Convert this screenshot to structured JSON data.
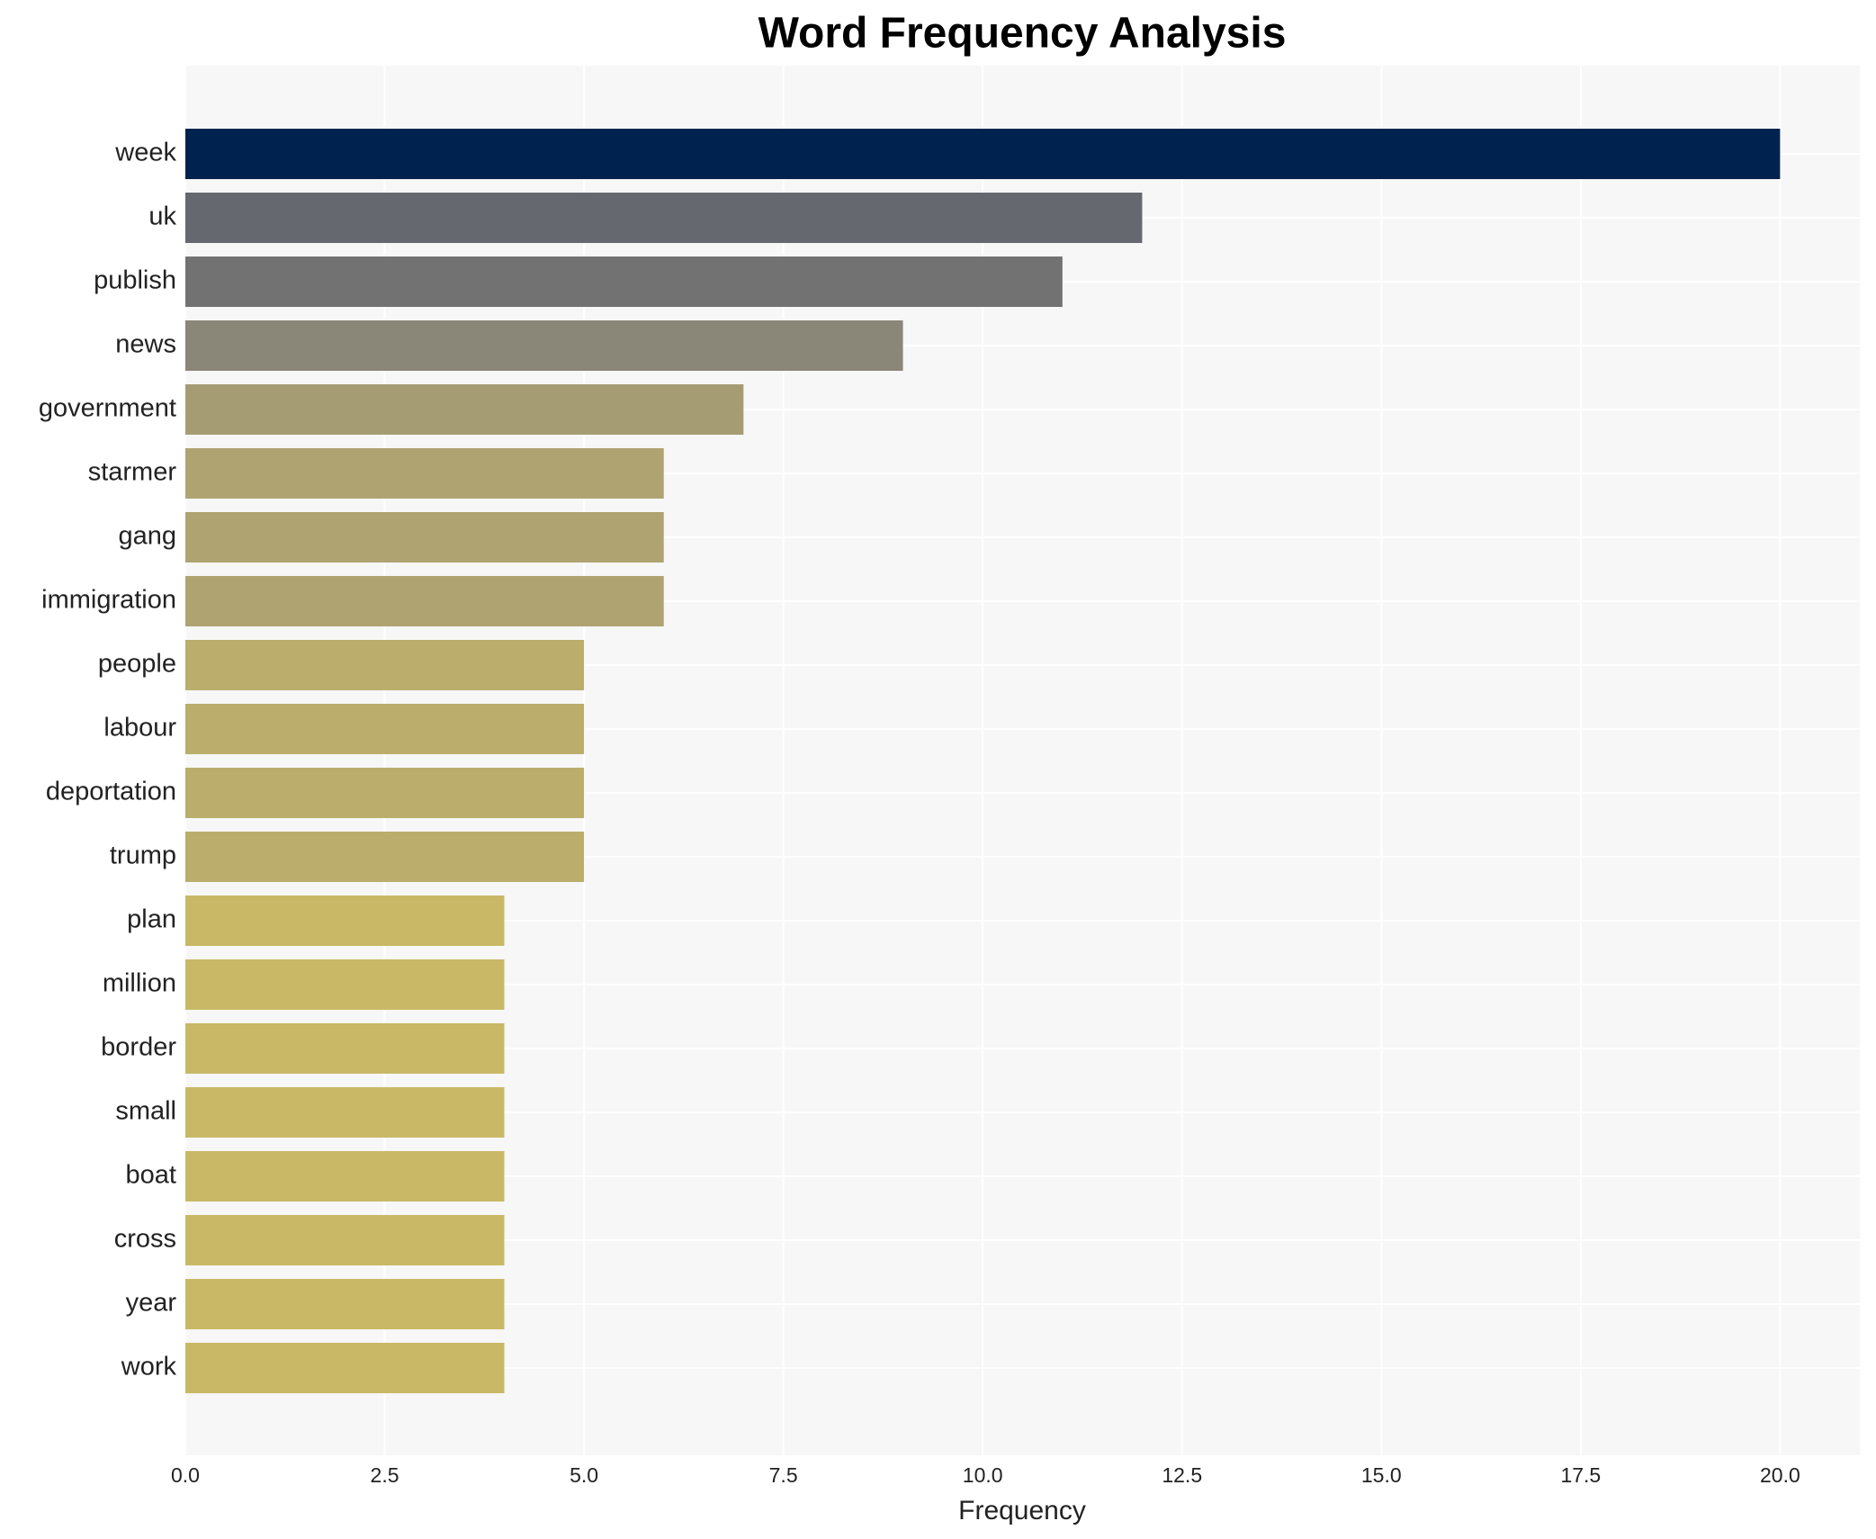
{
  "chart_data": {
    "type": "bar",
    "orientation": "horizontal",
    "title": "Word Frequency Analysis",
    "x_label": "Frequency",
    "categories": [
      "week",
      "uk",
      "publish",
      "news",
      "government",
      "starmer",
      "gang",
      "immigration",
      "people",
      "labour",
      "deportation",
      "trump",
      "plan",
      "million",
      "border",
      "small",
      "boat",
      "cross",
      "year",
      "work"
    ],
    "values": [
      20,
      12,
      11,
      9,
      7,
      6,
      6,
      6,
      5,
      5,
      5,
      5,
      4,
      4,
      4,
      4,
      4,
      4,
      4,
      4
    ],
    "colors": [
      "#00224e",
      "#666870",
      "#727272",
      "#8a8678",
      "#a59c74",
      "#b0a372",
      "#b0a372",
      "#b0a372",
      "#bbad6c",
      "#bbad6c",
      "#bbad6c",
      "#bbad6c",
      "#c9b866",
      "#c9b866",
      "#c9b866",
      "#c9b866",
      "#c9b866",
      "#c9b866",
      "#c9b866",
      "#c9b866"
    ],
    "xlim": [
      0,
      21
    ],
    "xticks": [
      {
        "value": 0,
        "label": "0.0"
      },
      {
        "value": 2.5,
        "label": "2.5"
      },
      {
        "value": 5,
        "label": "5.0"
      },
      {
        "value": 7.5,
        "label": "7.5"
      },
      {
        "value": 10,
        "label": "10.0"
      },
      {
        "value": 12.5,
        "label": "12.5"
      },
      {
        "value": 15,
        "label": "15.0"
      },
      {
        "value": 17.5,
        "label": "17.5"
      },
      {
        "value": 20,
        "label": "20.0"
      }
    ],
    "grid": true
  }
}
